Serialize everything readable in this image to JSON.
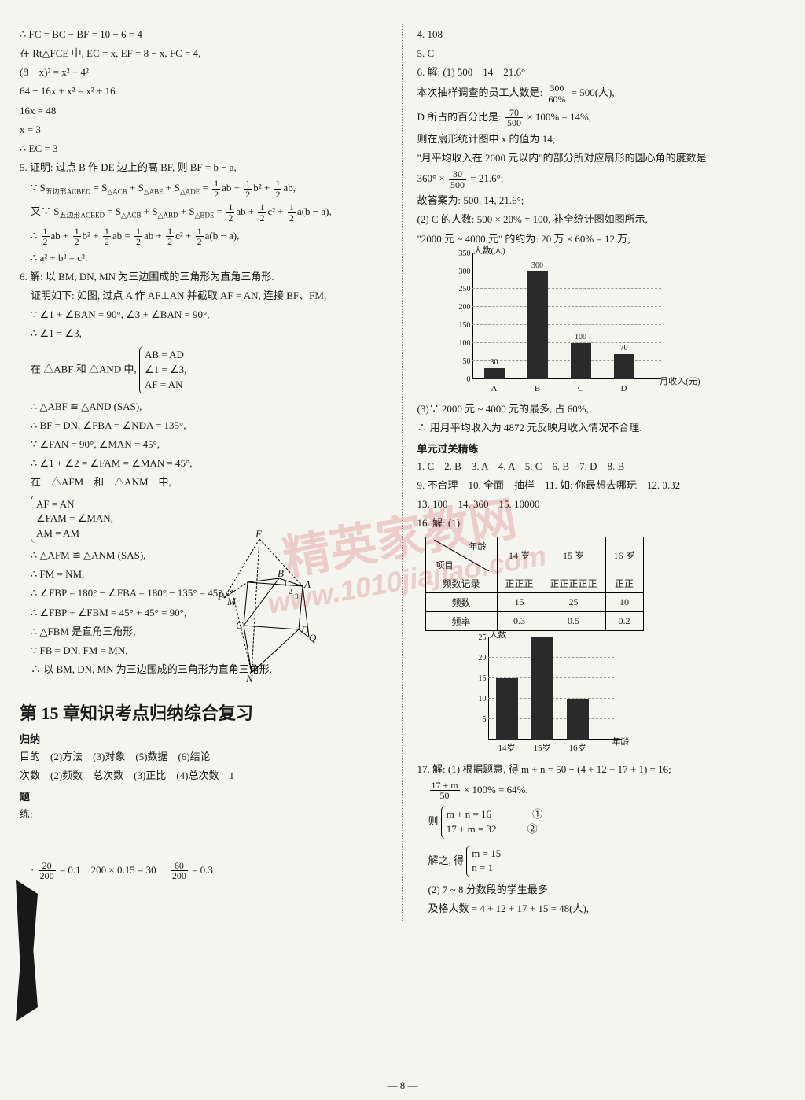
{
  "pageNumber": "— 8 —",
  "watermark": {
    "main": "精英家教网",
    "url": "www.1010jiajiao.com"
  },
  "left": {
    "l1": "∴ FC = BC − BF = 10 − 6 = 4",
    "l2": "在 Rt△FCE 中, EC = x, EF = 8 − x, FC = 4,",
    "l3": "(8 − x)² = x² + 4²",
    "l4": "64 − 16x + x² = x² + 16",
    "l5": "16x = 48",
    "l6": "x = 3",
    "l7": "∴ EC = 3",
    "q5": "5. 证明: 过点 B 作 DE 边上的高 BF, 则 BF = b − a,",
    "q5a_prefix": "∵ S",
    "q5a_sub": "五边形ACBED",
    "q5a_mid": " = S",
    "q5a_s1": "△ACB",
    "q5a_plus": " + S",
    "q5a_s2": "△ABE",
    "q5a_s3": "△ADE",
    "q5a_eq": " = ",
    "q5b_prefix": "又∵ S",
    "q5b_s1": "△ACB",
    "q5b_s2": "△ABD",
    "q5b_s3": "△BDE",
    "q5c": "∴ ",
    "q5d": "∴ a² + b² = c².",
    "q6": "6. 解: 以 BM, DN, MN 为三边围成的三角形为直角三角形.",
    "q6a": "证明如下: 如图, 过点 A 作 AF⊥AN 并截取 AF = AN, 连接 BF、FM,",
    "q6b": "∵ ∠1 + ∠BAN = 90°, ∠3 + ∠BAN = 90°,",
    "q6c": "∴ ∠1 = ∠3,",
    "q6d_intro": "在 △ABF 和 △AND 中,",
    "q6d_b1": "AB = AD",
    "q6d_b2": "∠1 = ∠3,",
    "q6d_b3": "AF = AN",
    "q6e": "∴ △ABF ≌ △AND (SAS),",
    "q6f": "∴ BF = DN, ∠FBA = ∠NDA = 135°,",
    "q6g": "∵ ∠FAN = 90°, ∠MAN = 45°,",
    "q6h": "∴ ∠1 + ∠2 = ∠FAM = ∠MAN = 45°,",
    "q6i_intro": "在　△AFM　和　△ANM　中,",
    "q6i_b1": "AF = AN",
    "q6i_b2": "∠FAM = ∠MAN,",
    "q6i_b3": "AM = AM",
    "q6j": "∴ △AFM ≌ △ANM (SAS),",
    "q6k": "∴ FM = NM,",
    "q6l": "∴ ∠FBP = 180° − ∠FBA = 180° − 135° = 45°,",
    "q6m": "∴ ∠FBP + ∠FBM = 45° + 45° = 90°,",
    "q6n": "∴ △FBM 是直角三角形,",
    "q6o": "∵ FB = DN, FM = MN,",
    "q6p": "∴ 以 BM, DN, MN 为三边围成的三角形为直角三角形.",
    "chapterTitle": "第 15 章知识考点归纳综合复习",
    "gn": "归纳",
    "gn1": "目的　(2)方法　(3)对象　(5)数据　(6)结论",
    "gn2": "次数　(2)频数　总次数　(3)正比　(4)总次数　1",
    "ex": "题",
    "ex2": "练:",
    "ex3_pre": "·",
    "ex3_mid": " = 0.1　200 × 0.15 = 30　",
    "ex3_post": " = 0.3",
    "frac_20_200": {
      "n": "20",
      "d": "200"
    },
    "frac_60_200": {
      "n": "60",
      "d": "200"
    },
    "geomLabels": {
      "F": "F",
      "B": "B",
      "A": "A",
      "P": "P",
      "M": "M",
      "C": "C",
      "D": "D",
      "N": "N",
      "Q": "Q",
      "n1": "1",
      "n2": "2",
      "n3": "3"
    }
  },
  "right": {
    "r4": "4. 108",
    "r5": "5. C",
    "r6": "6. 解: (1) 500　14　21.6°",
    "r6a_pre": "本次抽样调查的员工人数是: ",
    "r6a_frac": {
      "n": "300",
      "d": "60%"
    },
    "r6a_post": " = 500(人),",
    "r6b_pre": "D 所占的百分比是: ",
    "r6b_frac": {
      "n": "70",
      "d": "500"
    },
    "r6b_post": " × 100% = 14%,",
    "r6c": "则在扇形统计图中 x 的值为 14;",
    "r6d": "\"月平均收入在 2000 元以内\"的部分所对应扇形的圆心角的度数是",
    "r6e_pre": "360° × ",
    "r6e_frac": {
      "n": "30",
      "d": "500"
    },
    "r6e_post": " = 21.6°;",
    "r6f": "故答案为: 500, 14, 21.6°;",
    "r6g": "(2) C 的人数: 500 × 20% = 100, 补全统计图如图所示,",
    "r6h": "\"2000 元 ~ 4000 元\" 的约为: 20 万 × 60% = 12 万;",
    "chart1": {
      "type": "bar",
      "ylabel": "人数(人)",
      "xlabel": "月收入(元)",
      "ylim": [
        0,
        350
      ],
      "yticks": [
        0,
        50,
        100,
        150,
        200,
        250,
        300,
        350
      ],
      "categories": [
        "A",
        "B",
        "C",
        "D"
      ],
      "values": [
        30,
        300,
        100,
        70
      ],
      "valueLabels": [
        "30",
        "300",
        "100",
        "70"
      ],
      "barColor": "#2a2a2a",
      "gridColor": "#999999",
      "background": "#f5f5f0"
    },
    "r6i": "(3)∵ 2000 元 ~ 4000 元的最多, 占 60%,",
    "r6j": "∴ 用月平均收入为 4872 元反映月收入情况不合理.",
    "unitTitle": "单元过关精练",
    "u1": "1. C　2. B　3. A　4. A　5. C　6. B　7. D　8. B",
    "u2": "9. 不合理　10. 全面　抽样　11. 如: 你最想去哪玩　12. 0.32",
    "u3": "13. 100　14. 360　15. 10000",
    "u16": "16. 解: (1)",
    "table": {
      "headerDiag": {
        "top": "年龄",
        "bottom": "项目"
      },
      "cols": [
        "14 岁",
        "15 岁",
        "16 岁"
      ],
      "rows": [
        {
          "label": "频数记录",
          "cells": [
            "正正正",
            "正正正正正",
            "正正"
          ]
        },
        {
          "label": "频数",
          "cells": [
            "15",
            "25",
            "10"
          ]
        },
        {
          "label": "频率",
          "cells": [
            "0.3",
            "0.5",
            "0.2"
          ]
        }
      ],
      "borderColor": "#000000"
    },
    "chart2": {
      "type": "bar",
      "ylabel": "人数",
      "xlabel": "年龄",
      "ylim": [
        0,
        25
      ],
      "yticks": [
        5,
        10,
        15,
        20,
        25
      ],
      "categories": [
        "14岁",
        "15岁",
        "16岁"
      ],
      "values": [
        15,
        25,
        10
      ],
      "barColor": "#2a2a2a",
      "gridColor": "#999999"
    },
    "r17": "17. 解: (1) 根据题意, 得 m + n = 50 − (4 + 12 + 17 + 1) = 16;",
    "r17a_frac": {
      "n": "17 + m",
      "d": "50"
    },
    "r17a_post": " × 100% = 64%.",
    "r17b_intro": "则",
    "r17b_b1": "m + n = 16",
    "r17b_n1": "①",
    "r17b_b2": "17 + m = 32",
    "r17b_n2": "②",
    "r17c_intro": "解之, 得",
    "r17c_b1": "m = 15",
    "r17c_b2": "n = 1",
    "r17d": "(2) 7 ~ 8 分数段的学生最多",
    "r17e": "及格人数 = 4 + 12 + 17 + 15 = 48(人),"
  }
}
